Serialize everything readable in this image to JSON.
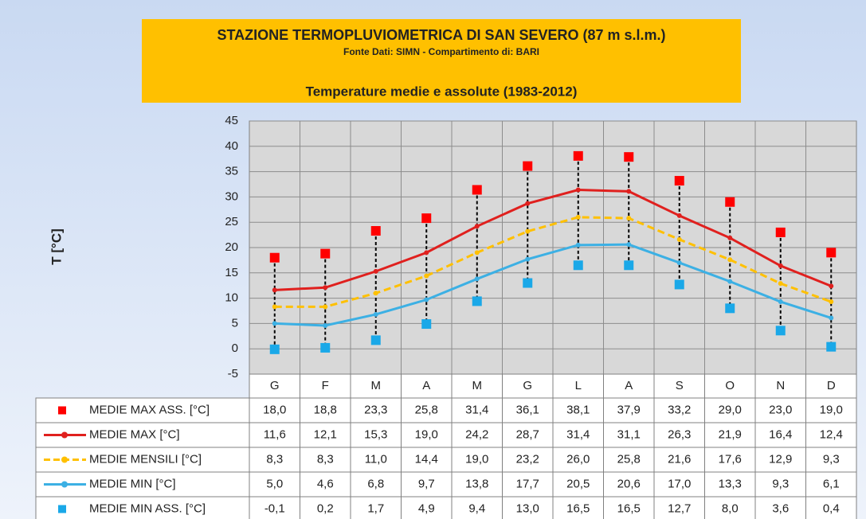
{
  "chart_data": {
    "type": "line",
    "header": "STAZIONE TERMOPLUVIOMETRICA DI SAN SEVERO (87 m s.l.m.)",
    "subtitle": "Fonte Dati: SIMN - Compartimento  di: BARI",
    "title": "Temperature medie e assolute (1983-2012)",
    "y_label": "T [°C]",
    "categories": [
      "G",
      "F",
      "M",
      "A",
      "M",
      "G",
      "L",
      "A",
      "S",
      "O",
      "N",
      "D"
    ],
    "ylim": [
      -5,
      45
    ],
    "yticks": [
      -5,
      0,
      5,
      10,
      15,
      20,
      25,
      30,
      35,
      40,
      45
    ],
    "grid": true,
    "series": [
      {
        "name": "MEDIE MAX ASS. [°C]",
        "color": "#ff0000",
        "style": "square",
        "values": [
          18.0,
          18.8,
          23.3,
          25.8,
          31.4,
          36.1,
          38.1,
          37.9,
          33.2,
          29.0,
          23.0,
          19.0
        ],
        "value_labels": [
          "18,0",
          "18,8",
          "23,3",
          "25,8",
          "31,4",
          "36,1",
          "38,1",
          "37,9",
          "33,2",
          "29,0",
          "23,0",
          "19,0"
        ]
      },
      {
        "name": "MEDIE MAX [°C]",
        "color": "#e0201e",
        "style": "solid",
        "values": [
          11.6,
          12.1,
          15.3,
          19.0,
          24.2,
          28.7,
          31.4,
          31.1,
          26.3,
          21.9,
          16.4,
          12.4
        ],
        "value_labels": [
          "11,6",
          "12,1",
          "15,3",
          "19,0",
          "24,2",
          "28,7",
          "31,4",
          "31,1",
          "26,3",
          "21,9",
          "16,4",
          "12,4"
        ]
      },
      {
        "name": "MEDIE MENSILI [°C]",
        "color": "#ffc000",
        "style": "dashed",
        "values": [
          8.3,
          8.3,
          11.0,
          14.4,
          19.0,
          23.2,
          26.0,
          25.8,
          21.6,
          17.6,
          12.9,
          9.3
        ],
        "value_labels": [
          "8,3",
          "8,3",
          "11,0",
          "14,4",
          "19,0",
          "23,2",
          "26,0",
          "25,8",
          "21,6",
          "17,6",
          "12,9",
          "9,3"
        ]
      },
      {
        "name": "MEDIE MIN [°C]",
        "color": "#3cb0e4",
        "style": "solid",
        "values": [
          5.0,
          4.6,
          6.8,
          9.7,
          13.8,
          17.7,
          20.5,
          20.6,
          17.0,
          13.3,
          9.3,
          6.1
        ],
        "value_labels": [
          "5,0",
          "4,6",
          "6,8",
          "9,7",
          "13,8",
          "17,7",
          "20,5",
          "20,6",
          "17,0",
          "13,3",
          "9,3",
          "6,1"
        ]
      },
      {
        "name": "MEDIE MIN ASS. [°C]",
        "color": "#1aa8e8",
        "style": "square",
        "values": [
          -0.1,
          0.2,
          1.7,
          4.9,
          9.4,
          13.0,
          16.5,
          16.5,
          12.7,
          8.0,
          3.6,
          0.4
        ],
        "value_labels": [
          "-0,1",
          "0,2",
          "1,7",
          "4,9",
          "9,4",
          "13,0",
          "16,5",
          "16,5",
          "12,7",
          "8,0",
          "3,6",
          "0,4"
        ]
      }
    ]
  }
}
